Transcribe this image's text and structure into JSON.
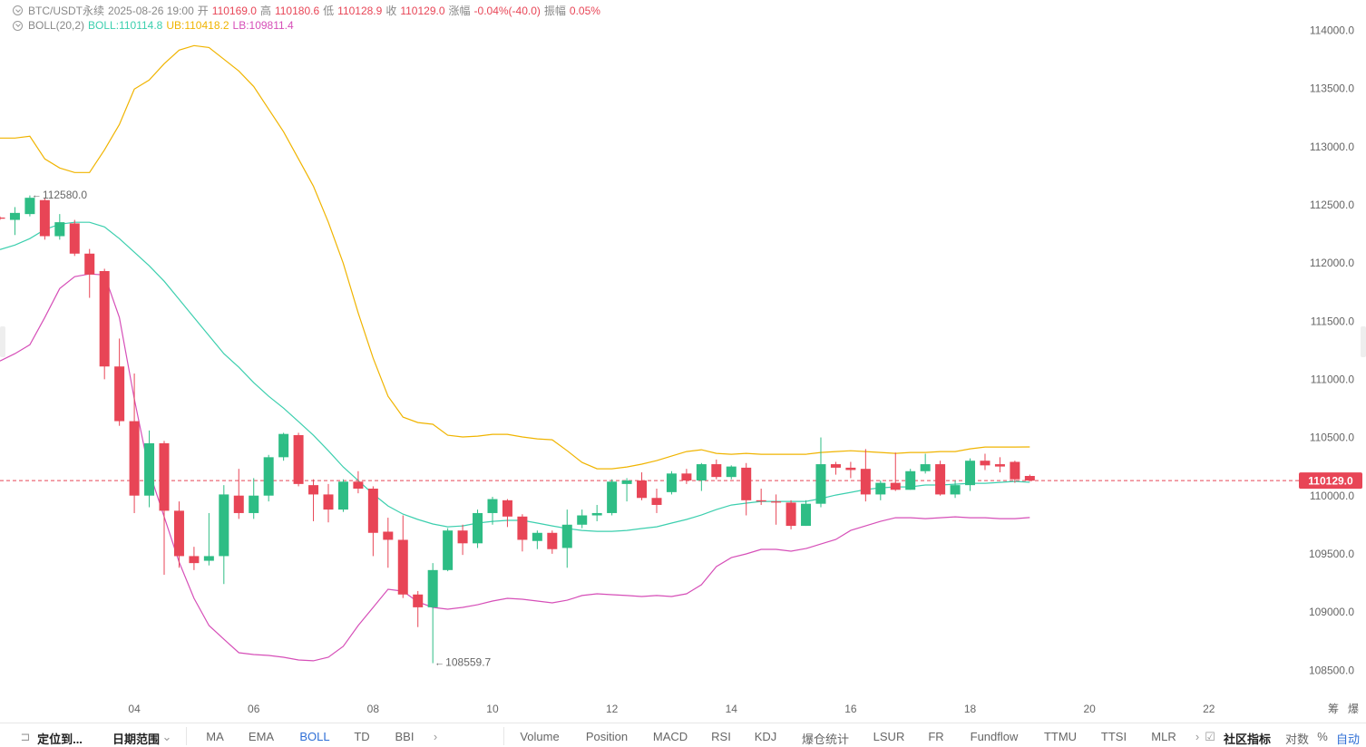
{
  "chart_data": {
    "type": "candlestick",
    "indicator": "BOLL(20,2)",
    "candles": {
      "up_color": "#2ebd85",
      "down_color": "#e84556",
      "open": [
        112390,
        112370,
        112420,
        112540,
        112230,
        112340,
        112080,
        111930,
        111110,
        110640,
        110000,
        110450,
        109870,
        109480,
        109440,
        109480,
        110000,
        109850,
        110000,
        110330,
        110520,
        110090,
        110010,
        109880,
        110120,
        110060,
        109690,
        109620,
        109150,
        109040,
        109360,
        109700,
        109590,
        109850,
        109960,
        109820,
        109610,
        109680,
        109550,
        109750,
        109830,
        109850,
        110100,
        110130,
        109980,
        110030,
        110190,
        110130,
        110270,
        110160,
        110240,
        109960,
        109950,
        109940,
        109740,
        109930,
        110270,
        110240,
        110230,
        110010,
        110110,
        110050,
        110210,
        110270,
        110010,
        110090,
        110300,
        110270,
        110290,
        110169
      ],
      "high": [
        112400,
        112480,
        112580,
        112560,
        112420,
        112370,
        112120,
        111950,
        111350,
        111050,
        110560,
        110470,
        109950,
        109560,
        109850,
        110090,
        110230,
        110150,
        110350,
        110540,
        110540,
        110140,
        110100,
        110140,
        110210,
        110080,
        109810,
        109830,
        109180,
        109420,
        109720,
        109750,
        109880,
        109990,
        109970,
        109840,
        109700,
        109700,
        109880,
        109880,
        109920,
        110140,
        110150,
        110200,
        110060,
        110210,
        110230,
        110280,
        110310,
        110260,
        110280,
        110060,
        110010,
        109960,
        109960,
        110500,
        110290,
        110290,
        110400,
        110130,
        110370,
        110230,
        110360,
        110300,
        110130,
        110320,
        110360,
        110330,
        110300,
        110180.6
      ],
      "low": [
        112370,
        112240,
        112400,
        112200,
        112200,
        112060,
        111700,
        111000,
        110600,
        109850,
        109900,
        109320,
        109380,
        109360,
        109400,
        109240,
        109800,
        109800,
        109950,
        110300,
        110080,
        109780,
        109770,
        109860,
        110020,
        109480,
        109380,
        109120,
        108870,
        108559.7,
        109350,
        109490,
        109550,
        109750,
        109730,
        109520,
        109540,
        109500,
        109380,
        109720,
        109780,
        109830,
        109950,
        109960,
        109850,
        110010,
        110100,
        110040,
        110140,
        110140,
        109830,
        109920,
        109750,
        109710,
        109740,
        109900,
        110180,
        110150,
        109950,
        109960,
        110040,
        110050,
        110190,
        110000,
        109980,
        110040,
        110220,
        110200,
        110110,
        110128.9
      ],
      "close": [
        112380,
        112430,
        112560,
        112230,
        112350,
        112080,
        111900,
        111110,
        110640,
        110000,
        110450,
        109870,
        109480,
        109420,
        109480,
        110010,
        109850,
        110000,
        110330,
        110530,
        110100,
        110010,
        109880,
        110120,
        110060,
        109680,
        109620,
        109150,
        109040,
        109360,
        109700,
        109590,
        109850,
        109970,
        109820,
        109620,
        109680,
        109540,
        109750,
        109830,
        109850,
        110120,
        110130,
        109980,
        109920,
        110190,
        110130,
        110270,
        110160,
        110250,
        109960,
        109950,
        109940,
        109740,
        109930,
        110270,
        110240,
        110220,
        110010,
        110110,
        110050,
        110210,
        110270,
        110010,
        110090,
        110300,
        110260,
        110250,
        110140,
        110129
      ]
    },
    "series": [
      {
        "name": "BOLL:110114.8",
        "color": "#3ccfae",
        "values": [
          112115,
          112154,
          112209,
          112287,
          112333,
          112349,
          112349,
          112310,
          112209,
          112092,
          111975,
          111843,
          111687,
          111531,
          111375,
          111220,
          111103,
          110971,
          110854,
          110752,
          110636,
          110519,
          110386,
          110246,
          110129,
          110013,
          109911,
          109841,
          109795,
          109756,
          109732,
          109740,
          109764,
          109779,
          109787,
          109787,
          109764,
          109740,
          109717,
          109701,
          109693,
          109693,
          109701,
          109717,
          109732,
          109764,
          109795,
          109833,
          109880,
          109919,
          109935,
          109950,
          109950,
          109950,
          109950,
          109974,
          110005,
          110028,
          110052,
          110067,
          110075,
          110075,
          110091,
          110091,
          110098,
          110106,
          110106,
          110114,
          110122,
          110114.8
        ]
      },
      {
        "name": "UB:110418.2",
        "color": "#f0b400",
        "values": [
          113073,
          113073,
          113089,
          112894,
          112816,
          112777,
          112777,
          112972,
          113190,
          113494,
          113572,
          113712,
          113829,
          113868,
          113852,
          113751,
          113650,
          113517,
          113322,
          113128,
          112894,
          112660,
          112349,
          111998,
          111570,
          111181,
          110854,
          110675,
          110628,
          110613,
          110519,
          110504,
          110511,
          110527,
          110527,
          110504,
          110488,
          110480,
          110386,
          110285,
          110231,
          110231,
          110246,
          110270,
          110301,
          110340,
          110379,
          110394,
          110363,
          110355,
          110363,
          110355,
          110355,
          110355,
          110355,
          110371,
          110379,
          110386,
          110379,
          110371,
          110363,
          110371,
          110371,
          110379,
          110379,
          110402,
          110418,
          110418,
          110418,
          110418.2
        ]
      },
      {
        "name": "LB:109811.4",
        "color": "#d64fb8",
        "values": [
          111157,
          111220,
          111297,
          111531,
          111780,
          111882,
          111905,
          111897,
          111531,
          110830,
          110207,
          109818,
          109428,
          109117,
          108883,
          108766,
          108650,
          108634,
          108626,
          108611,
          108587,
          108580,
          108611,
          108704,
          108883,
          109039,
          109195,
          109179,
          109086,
          109039,
          109024,
          109039,
          109062,
          109094,
          109117,
          109109,
          109094,
          109078,
          109101,
          109141,
          109156,
          109148,
          109141,
          109133,
          109141,
          109133,
          109156,
          109234,
          109390,
          109467,
          109499,
          109538,
          109538,
          109522,
          109545,
          109584,
          109623,
          109701,
          109740,
          109779,
          109810,
          109810,
          109802,
          109810,
          109818,
          109810,
          109810,
          109802,
          109802,
          109811.4
        ]
      }
    ],
    "annotations": [
      {
        "index": 2,
        "value": 112580,
        "label": "112580.0"
      },
      {
        "index": 29,
        "value": 108559.7,
        "label": "108559.7"
      }
    ],
    "last_price": {
      "value": 110129,
      "label": "110129.0",
      "color": "#e84556"
    },
    "xlim": [
      0,
      86.3
    ],
    "xticks": [
      {
        "value": 9,
        "label": "04"
      },
      {
        "value": 17,
        "label": "06"
      },
      {
        "value": 25,
        "label": "08"
      },
      {
        "value": 33,
        "label": "10"
      },
      {
        "value": 41,
        "label": "12"
      },
      {
        "value": 49,
        "label": "14"
      },
      {
        "value": 57,
        "label": "16"
      },
      {
        "value": 65,
        "label": "18"
      },
      {
        "value": 73,
        "label": "20"
      },
      {
        "value": 81,
        "label": "22"
      }
    ],
    "ylim": [
      108260,
      114260
    ],
    "yticks": [
      {
        "value": 108500,
        "label": "108500.0"
      },
      {
        "value": 109000,
        "label": "109000.0"
      },
      {
        "value": 109500,
        "label": "109500.0"
      },
      {
        "value": 110000,
        "label": "110000.0"
      },
      {
        "value": 110500,
        "label": "110500.0"
      },
      {
        "value": 111000,
        "label": "111000.0"
      },
      {
        "value": 111500,
        "label": "111500.0"
      },
      {
        "value": 112000,
        "label": "112000.0"
      },
      {
        "value": 112500,
        "label": "112500.0"
      },
      {
        "value": 113000,
        "label": "113000.0"
      },
      {
        "value": 113500,
        "label": "113500.0"
      },
      {
        "value": 114000,
        "label": "114000.0"
      }
    ],
    "grid": false
  },
  "ui": {
    "header": {
      "symbol": "BTC/USDT永续",
      "time": "2025-08-26 19:00",
      "open_label": "开",
      "open": "110169.0",
      "high_label": "高",
      "high": "110180.6",
      "low_label": "低",
      "low": "110128.9",
      "close_label": "收",
      "close": "110129.0",
      "change_label": "涨幅",
      "change": "-0.04%(-40.0)",
      "amplitude_label": "振幅",
      "amplitude": "0.05%"
    },
    "corner": [
      "筹",
      "爆"
    ],
    "toolbar_left": [
      "定位到...",
      "日期范围"
    ],
    "main_indicators": [
      "MA",
      "EMA",
      "BOLL",
      "TD",
      "BBI"
    ],
    "active_indicator": "BOLL",
    "sub_indicators": [
      "Volume",
      "Position",
      "MACD",
      "RSI",
      "KDJ",
      "爆仓统计",
      "LSUR",
      "FR",
      "Fundflow",
      "TTMU",
      "TTSI",
      "MLR"
    ],
    "toolbar_right": [
      "社区指标",
      "对数",
      "%",
      "自动"
    ]
  }
}
